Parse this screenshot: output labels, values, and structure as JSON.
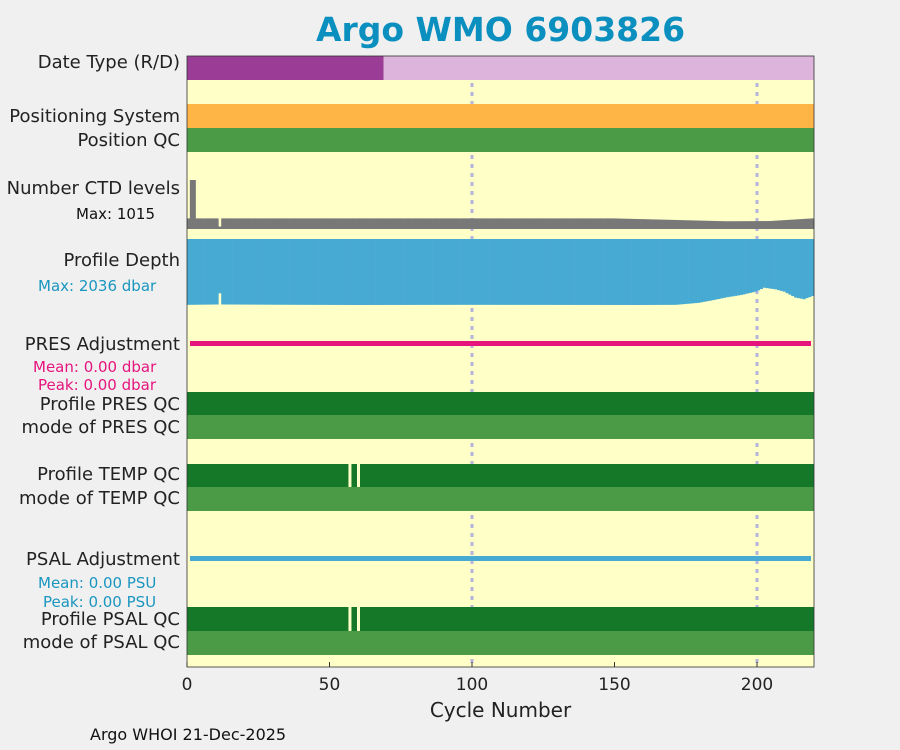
{
  "title": "Argo WMO 6903826",
  "xlabel": "Cycle Number",
  "footer": "Argo WHOI 21-Dec-2025",
  "rows": {
    "date_type": "Date Type (R/D)",
    "positioning_system": "Positioning System",
    "position_qc": "Position QC",
    "ctd_levels": "Number CTD levels",
    "ctd_max": "Max: 1015",
    "profile_depth": "Profile Depth",
    "depth_max": "Max: 2036 dbar",
    "pres_adj": "PRES Adjustment",
    "pres_mean": "Mean: 0.00 dbar",
    "pres_peak": "Peak: 0.00 dbar",
    "pres_qc": "Profile PRES QC",
    "pres_mode": "mode of PRES QC",
    "temp_qc": "Profile TEMP QC",
    "temp_mode": "mode of TEMP QC",
    "psal_adj": "PSAL Adjustment",
    "psal_mean": "Mean: 0.00 PSU",
    "psal_peak": "Peak: 0.00 PSU",
    "psal_qc": "Profile PSAL QC",
    "psal_mode": "mode of PSAL QC"
  },
  "colors": {
    "background": "#ffffc8",
    "realtime": "#9b3c96",
    "delayed": "#dcb4dc",
    "positioning": "#ffb446",
    "qc_good": "#4a9a46",
    "qc_profile_a": "#147828",
    "ctd": "#787878",
    "depth": "#46aad2",
    "pres_adj": "#e6147d",
    "psal_adj": "#46aad2",
    "grid": "#b4b4dc",
    "title": "#0a8fbf",
    "annot_pres": "#e6147d",
    "annot_psal": "#1a96c0"
  },
  "chart_data": {
    "type": "bar",
    "xlabel": "Cycle Number",
    "xlim": [
      0,
      220
    ],
    "xticks": [
      0,
      50,
      100,
      150,
      200
    ],
    "grid_x": [
      100,
      200
    ],
    "date_type": {
      "realtime_cycles": [
        1,
        69
      ],
      "delayed_cycles": [
        70,
        220
      ]
    },
    "qc_flagged_cycles": {
      "temp": [
        57,
        60
      ],
      "psal": [
        57,
        60
      ]
    },
    "ctd_levels": {
      "max": 1015,
      "values": [
        {
          "cycle": 1,
          "value": 220
        },
        {
          "cycle": 2,
          "value": 1015
        },
        {
          "cycle": 3,
          "value": 1015
        },
        {
          "cycle": 4,
          "value": 220
        },
        {
          "cycle": 11,
          "value": 220
        },
        {
          "cycle": 12,
          "value": 50
        },
        {
          "cycle": 13,
          "value": 220
        },
        {
          "cycle": 100,
          "value": 220
        },
        {
          "cycle": 150,
          "value": 220
        },
        {
          "cycle": 190,
          "value": 160
        },
        {
          "cycle": 205,
          "value": 165
        },
        {
          "cycle": 220,
          "value": 220
        }
      ]
    },
    "profile_depth": {
      "max": 2036,
      "values": [
        {
          "cycle": 1,
          "value": 2000
        },
        {
          "cycle": 11,
          "value": 1990
        },
        {
          "cycle": 12,
          "value": 1650
        },
        {
          "cycle": 13,
          "value": 1990
        },
        {
          "cycle": 40,
          "value": 2000
        },
        {
          "cycle": 60,
          "value": 2005
        },
        {
          "cycle": 100,
          "value": 2000
        },
        {
          "cycle": 160,
          "value": 2005
        },
        {
          "cycle": 172,
          "value": 2000
        },
        {
          "cycle": 180,
          "value": 1940
        },
        {
          "cycle": 185,
          "value": 1860
        },
        {
          "cycle": 190,
          "value": 1770
        },
        {
          "cycle": 195,
          "value": 1700
        },
        {
          "cycle": 200,
          "value": 1600
        },
        {
          "cycle": 203,
          "value": 1480
        },
        {
          "cycle": 207,
          "value": 1530
        },
        {
          "cycle": 210,
          "value": 1600
        },
        {
          "cycle": 214,
          "value": 1780
        },
        {
          "cycle": 217,
          "value": 1830
        },
        {
          "cycle": 220,
          "value": 1730
        }
      ]
    },
    "pres_adjustment": {
      "mean": 0.0,
      "peak": 0.0,
      "unit": "dbar"
    },
    "psal_adjustment": {
      "mean": 0.0,
      "peak": 0.0,
      "unit": "PSU"
    }
  }
}
